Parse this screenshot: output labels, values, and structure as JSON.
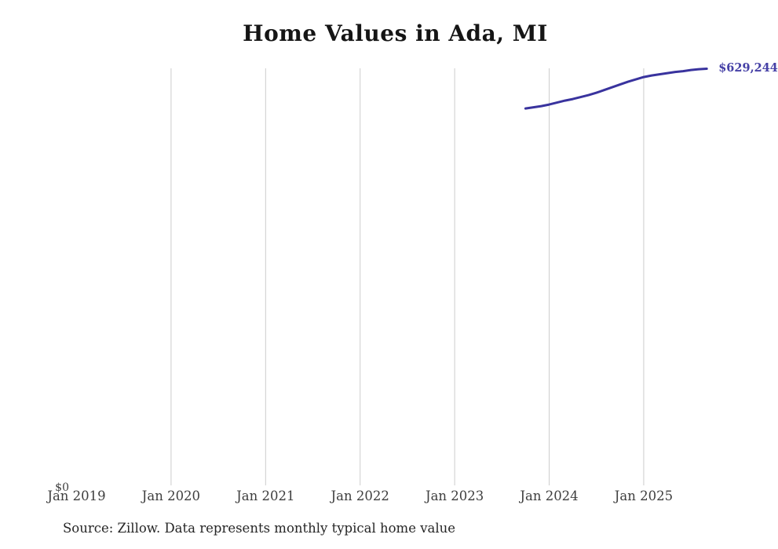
{
  "title": "Home Values in Ada, MI",
  "source_note": "Source: Zillow. Data represents monthly typical home value",
  "chart": {
    "y_zero_label": "$0",
    "last_value_label": "$629,244"
  },
  "chart_data": {
    "type": "line",
    "title": "Home Values in Ada, MI",
    "series_name": "Monthly typical home value",
    "x": [
      "2023-10",
      "2023-11",
      "2023-12",
      "2024-01",
      "2024-02",
      "2024-03",
      "2024-04",
      "2024-05",
      "2024-06",
      "2024-07",
      "2024-08",
      "2024-09",
      "2024-10",
      "2024-11",
      "2024-12",
      "2025-01",
      "2025-02",
      "2025-03",
      "2025-04",
      "2025-05",
      "2025-06",
      "2025-07",
      "2025-08",
      "2025-09"
    ],
    "values": [
      569500,
      571200,
      573000,
      575400,
      578300,
      581300,
      583600,
      586600,
      589500,
      593100,
      597200,
      601300,
      605500,
      609600,
      613200,
      616700,
      619100,
      620800,
      622600,
      624400,
      625600,
      627300,
      628500,
      629244
    ],
    "x_ticks": [
      {
        "label": "Jan 2019",
        "month": "2019-01",
        "gridline": false
      },
      {
        "label": "Jan 2020",
        "month": "2020-01",
        "gridline": true
      },
      {
        "label": "Jan 2021",
        "month": "2021-01",
        "gridline": true
      },
      {
        "label": "Jan 2022",
        "month": "2022-01",
        "gridline": true
      },
      {
        "label": "Jan 2023",
        "month": "2023-01",
        "gridline": true
      },
      {
        "label": "Jan 2024",
        "month": "2024-01",
        "gridline": true
      },
      {
        "label": "Jan 2025",
        "month": "2025-01",
        "gridline": true
      }
    ],
    "ylabel": "",
    "xlabel": "",
    "y_axis": {
      "min_label": "$0",
      "min_value": 0
    },
    "ylim": [
      0,
      629244
    ],
    "last_point_label": "$629,244",
    "legend": "none",
    "grid": "vertical-only",
    "line_color": "#39339e",
    "label_color": "#4540a6",
    "gridline_color": "#cccccc"
  }
}
